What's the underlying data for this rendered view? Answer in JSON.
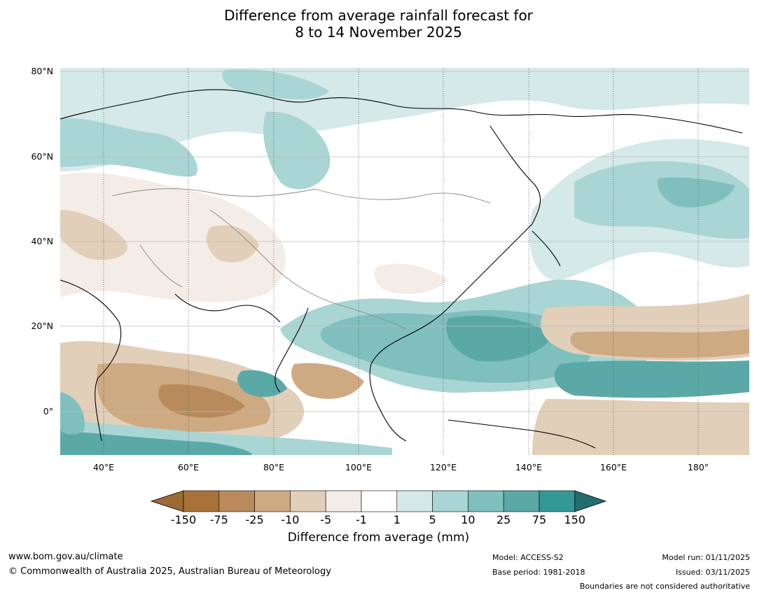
{
  "title": {
    "line1": "Difference from average rainfall forecast for",
    "line2": "8 to 14 November 2025"
  },
  "map": {
    "lat_labels": [
      "80°N",
      "60°N",
      "40°N",
      "20°N",
      "0°"
    ],
    "lon_labels": [
      "40°E",
      "60°E",
      "80°E",
      "100°E",
      "120°E",
      "140°E",
      "160°E",
      "180°"
    ]
  },
  "legend": {
    "labels": [
      "-150",
      "-75",
      "-25",
      "-10",
      "-5",
      "-1",
      "1",
      "5",
      "10",
      "25",
      "75",
      "150"
    ],
    "colors": [
      "#a9713a",
      "#b98b5c",
      "#cdaa82",
      "#e2cfb9",
      "#f4ece6",
      "#ffffff",
      "#d4e9e8",
      "#a9d5d4",
      "#7fc0be",
      "#5aa9a7",
      "#349896",
      "#236e6c"
    ],
    "under_color": "#9c6a33",
    "over_color": "#236e6c",
    "title": "Difference from average (mm)"
  },
  "footer": {
    "website": "www.bom.gov.au/climate",
    "copyright": "© Commonwealth of Australia 2025, Australian Bureau of Meteorology",
    "model": "Model: ACCESS-S2",
    "base_period": "Base period: 1981-2018",
    "model_run": "Model run: 01/11/2025",
    "issued": "Issued: 03/11/2025",
    "disclaimer": "Boundaries are not considered authoritative"
  }
}
